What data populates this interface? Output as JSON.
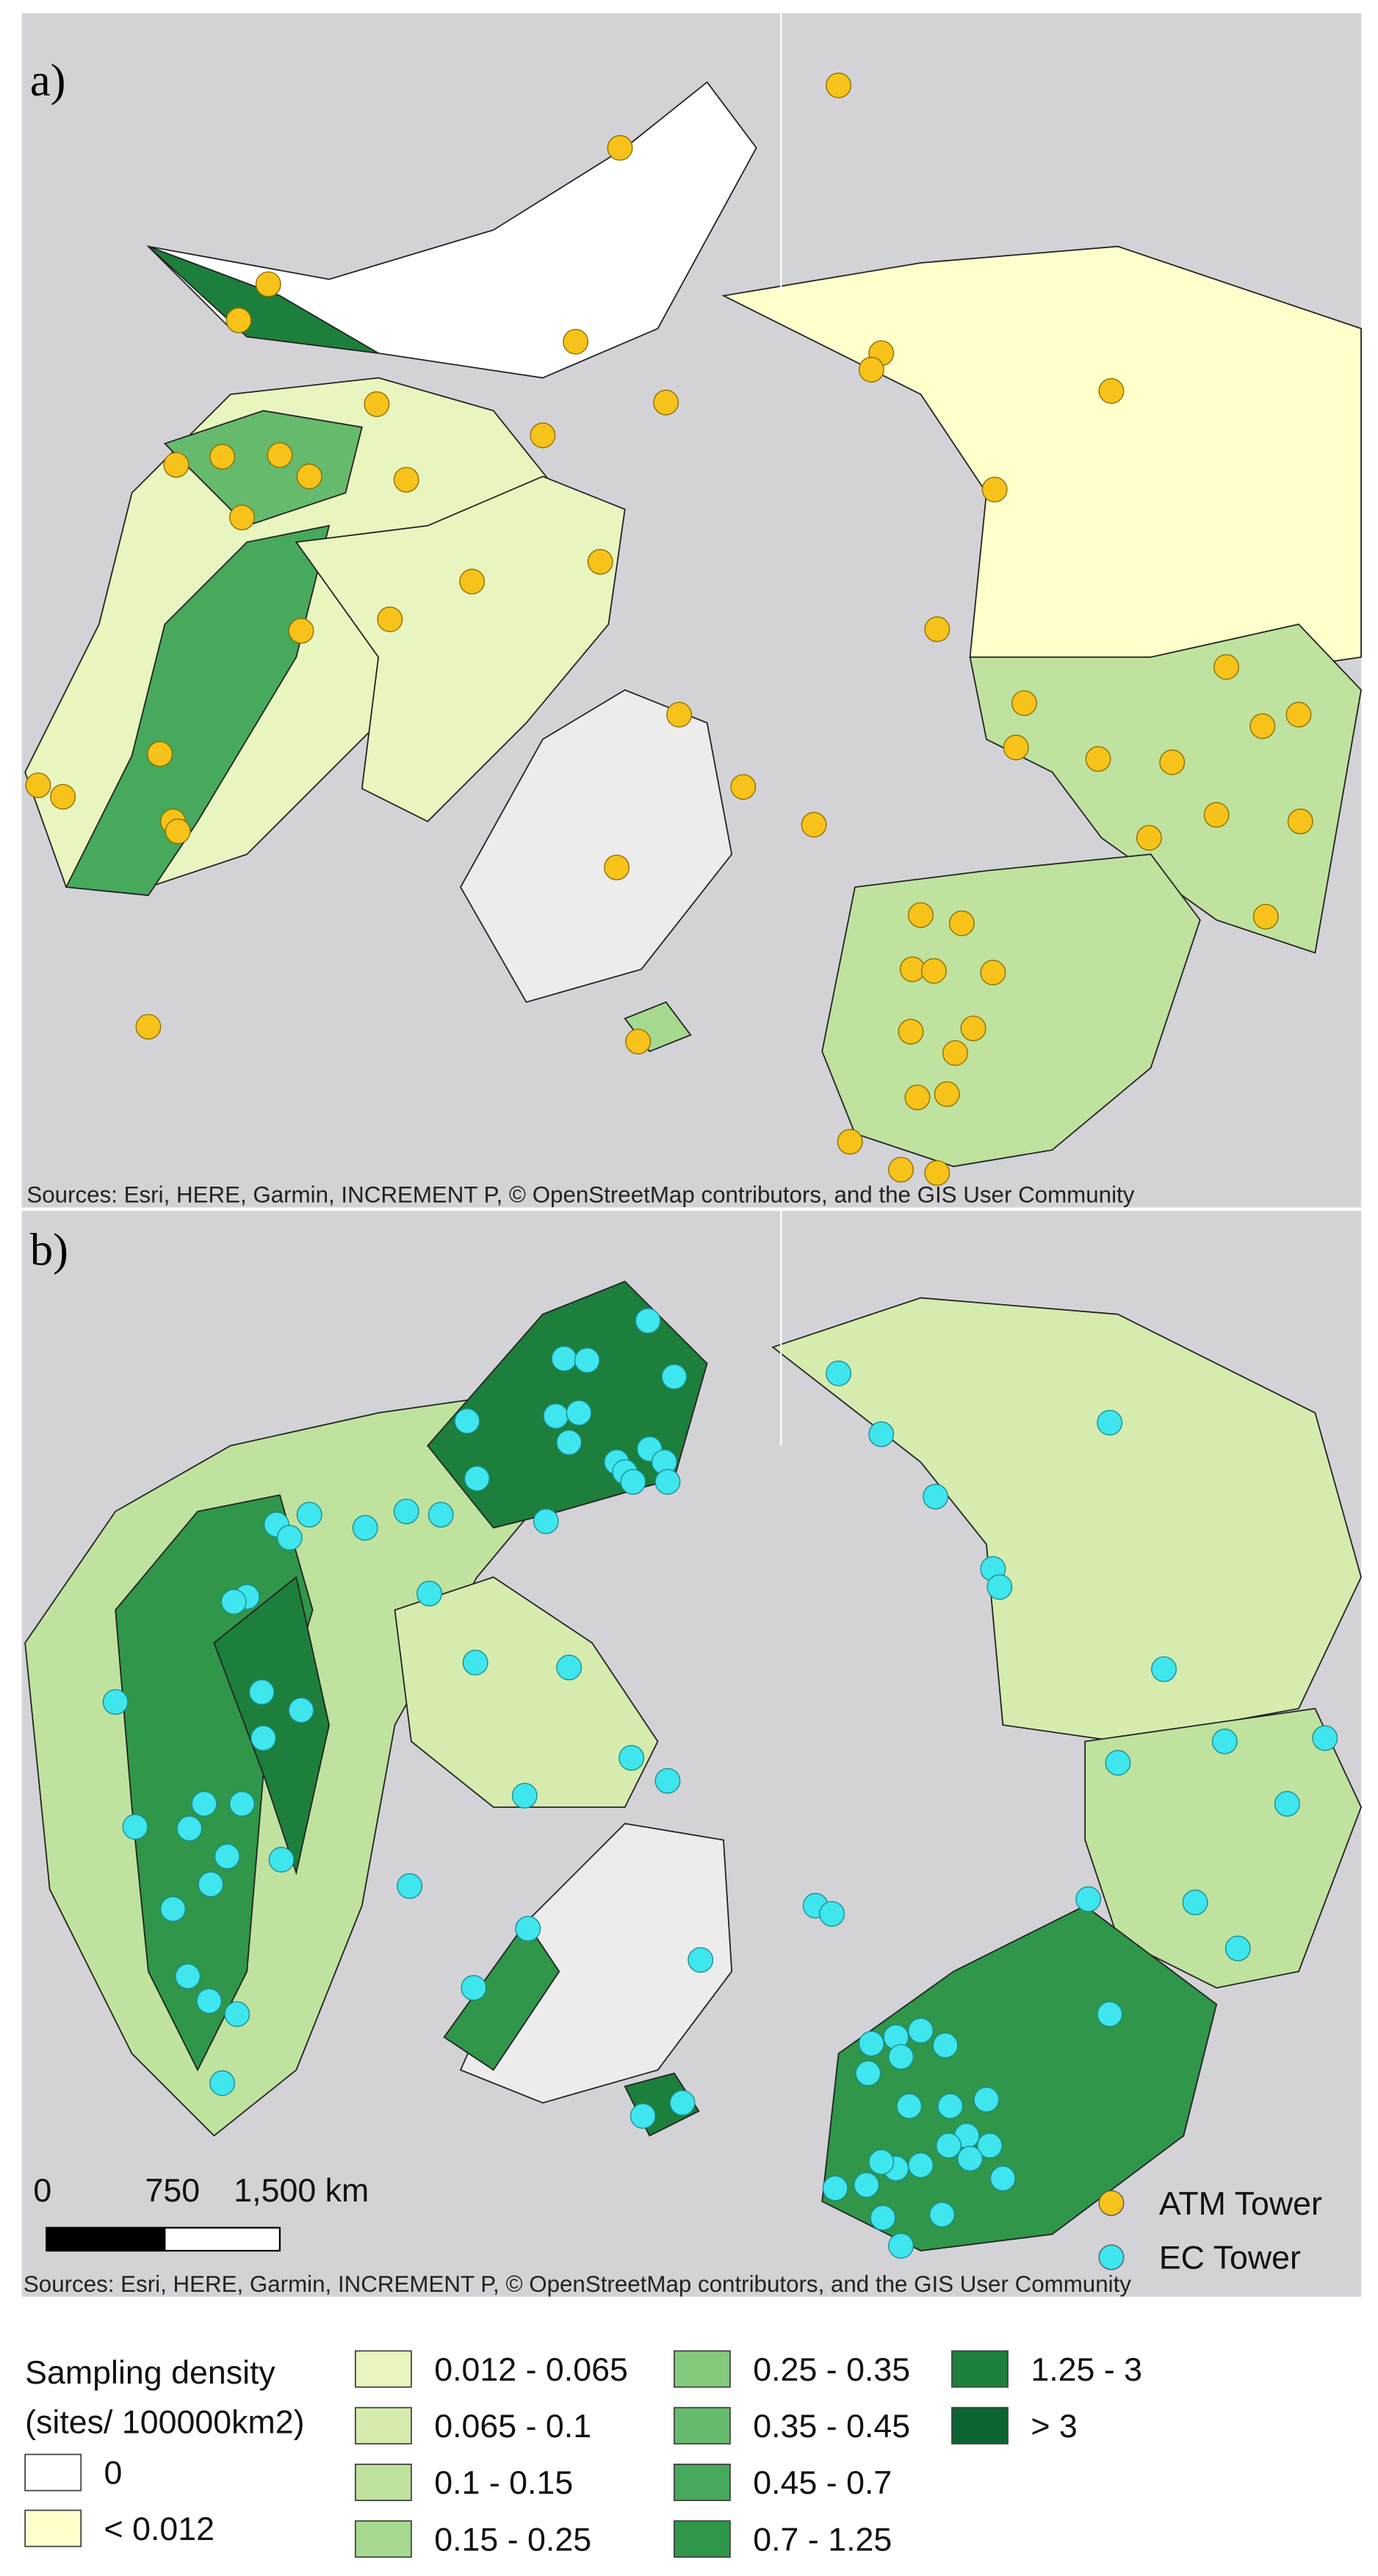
{
  "panels": [
    {
      "label": "a)",
      "source": "Sources: Esri, HERE, Garmin, INCREMENT P, © OpenStreetMap contributors, and the GIS User Community"
    },
    {
      "label": "b)",
      "source": "Sources: Esri, HERE, Garmin, INCREMENT P, © OpenStreetMap contributors, and the GIS User Community"
    }
  ],
  "scale_bar": {
    "labels": [
      "0",
      "750",
      "1,500 km"
    ]
  },
  "marker_legend": [
    {
      "label": "ATM Tower",
      "color": "#f7c21a"
    },
    {
      "label": "EC Tower",
      "color": "#3fe6ee"
    }
  ],
  "density_legend": {
    "title": [
      "Sampling density",
      "(sites/ 100000km2)"
    ],
    "classes": [
      {
        "label": "0",
        "color": "#ffffff"
      },
      {
        "label": "< 0.012",
        "color": "#ffffcc"
      },
      {
        "label": "0.012 - 0.065",
        "color": "#e9f5bf"
      },
      {
        "label": "0.065 - 0.1",
        "color": "#d5ecae"
      },
      {
        "label": "0.1 - 0.15",
        "color": "#bfe39e"
      },
      {
        "label": "0.15 - 0.25",
        "color": "#a6d98f"
      },
      {
        "label": "0.25 - 0.35",
        "color": "#84c97c"
      },
      {
        "label": "0.35 - 0.45",
        "color": "#66ba6c"
      },
      {
        "label": "0.45 - 0.7",
        "color": "#46a95b"
      },
      {
        "label": "0.7 - 1.25",
        "color": "#2f964a"
      },
      {
        "label": "1.25 - 3",
        "color": "#1d7f3c"
      },
      {
        "label": "> 3",
        "color": "#0a6530"
      }
    ]
  }
}
